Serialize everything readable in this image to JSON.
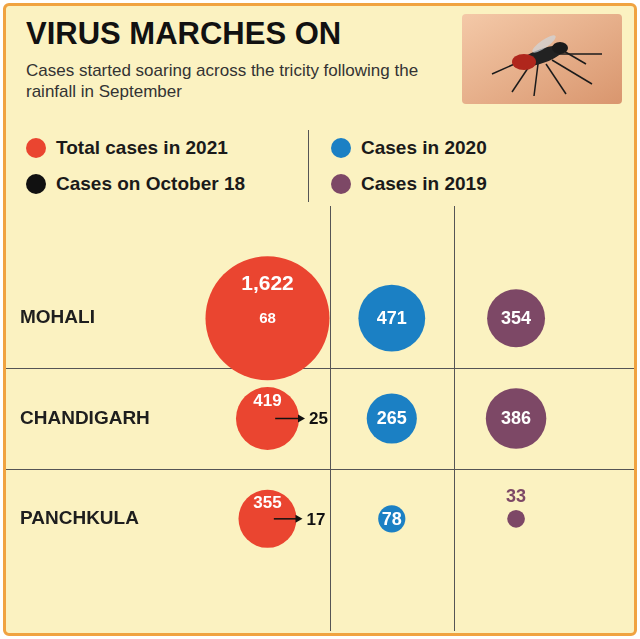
{
  "chart_data": {
    "type": "bubble",
    "title": "VIRUS MARCHES ON",
    "subtitle": "Cases started soaring across the tricity following the rainfall in September",
    "categories": [
      "MOHALI",
      "CHANDIGARH",
      "PANCHKULA"
    ],
    "series": [
      {
        "name": "Total cases in 2021",
        "color": "#ea4530",
        "values": [
          1622,
          419,
          355
        ],
        "value_labels": [
          "1,622",
          "419",
          "355"
        ]
      },
      {
        "name": "Cases on October 18",
        "color": "#111111",
        "values": [
          68,
          25,
          17
        ]
      },
      {
        "name": "Cases in 2020",
        "color": "#1b80c4",
        "values": [
          471,
          265,
          78
        ]
      },
      {
        "name": "Cases in 2019",
        "color": "#7d4866",
        "values": [
          354,
          386,
          33
        ]
      }
    ],
    "legend": "top",
    "grid": true,
    "data_labels": true,
    "tick_labels": "y"
  }
}
